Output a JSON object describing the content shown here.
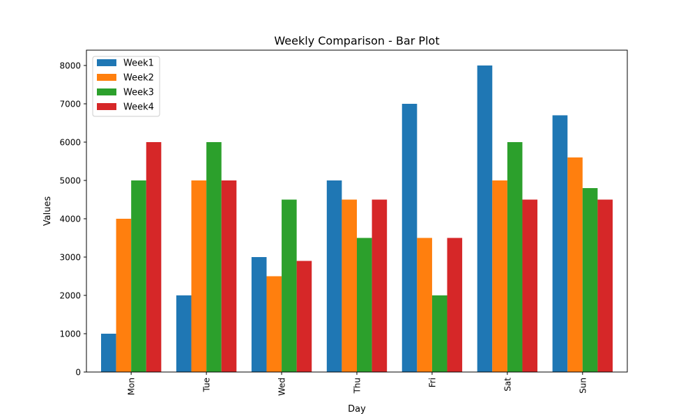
{
  "chart_data": {
    "type": "bar",
    "title": "Weekly Comparison - Bar Plot",
    "xlabel": "Day",
    "ylabel": "Values",
    "categories": [
      "Mon",
      "Tue",
      "Wed",
      "Thu",
      "Fri",
      "Sat",
      "Sun"
    ],
    "series": [
      {
        "name": "Week1",
        "color": "#1f77b4",
        "values": [
          1000,
          2000,
          3000,
          5000,
          7000,
          8000,
          6700
        ]
      },
      {
        "name": "Week2",
        "color": "#ff7f0e",
        "values": [
          4000,
          5000,
          2500,
          4500,
          3500,
          5000,
          5600
        ]
      },
      {
        "name": "Week3",
        "color": "#2ca02c",
        "values": [
          5000,
          6000,
          4500,
          3500,
          2000,
          6000,
          4800
        ]
      },
      {
        "name": "Week4",
        "color": "#d62728",
        "values": [
          6000,
          5000,
          2900,
          4500,
          3500,
          4500,
          4500
        ]
      }
    ],
    "yticks": [
      0,
      1000,
      2000,
      3000,
      4000,
      5000,
      6000,
      7000,
      8000
    ],
    "ylim": [
      0,
      8400
    ],
    "grid": false,
    "legend": "upper-left",
    "xtick_rotation": "vertical"
  }
}
